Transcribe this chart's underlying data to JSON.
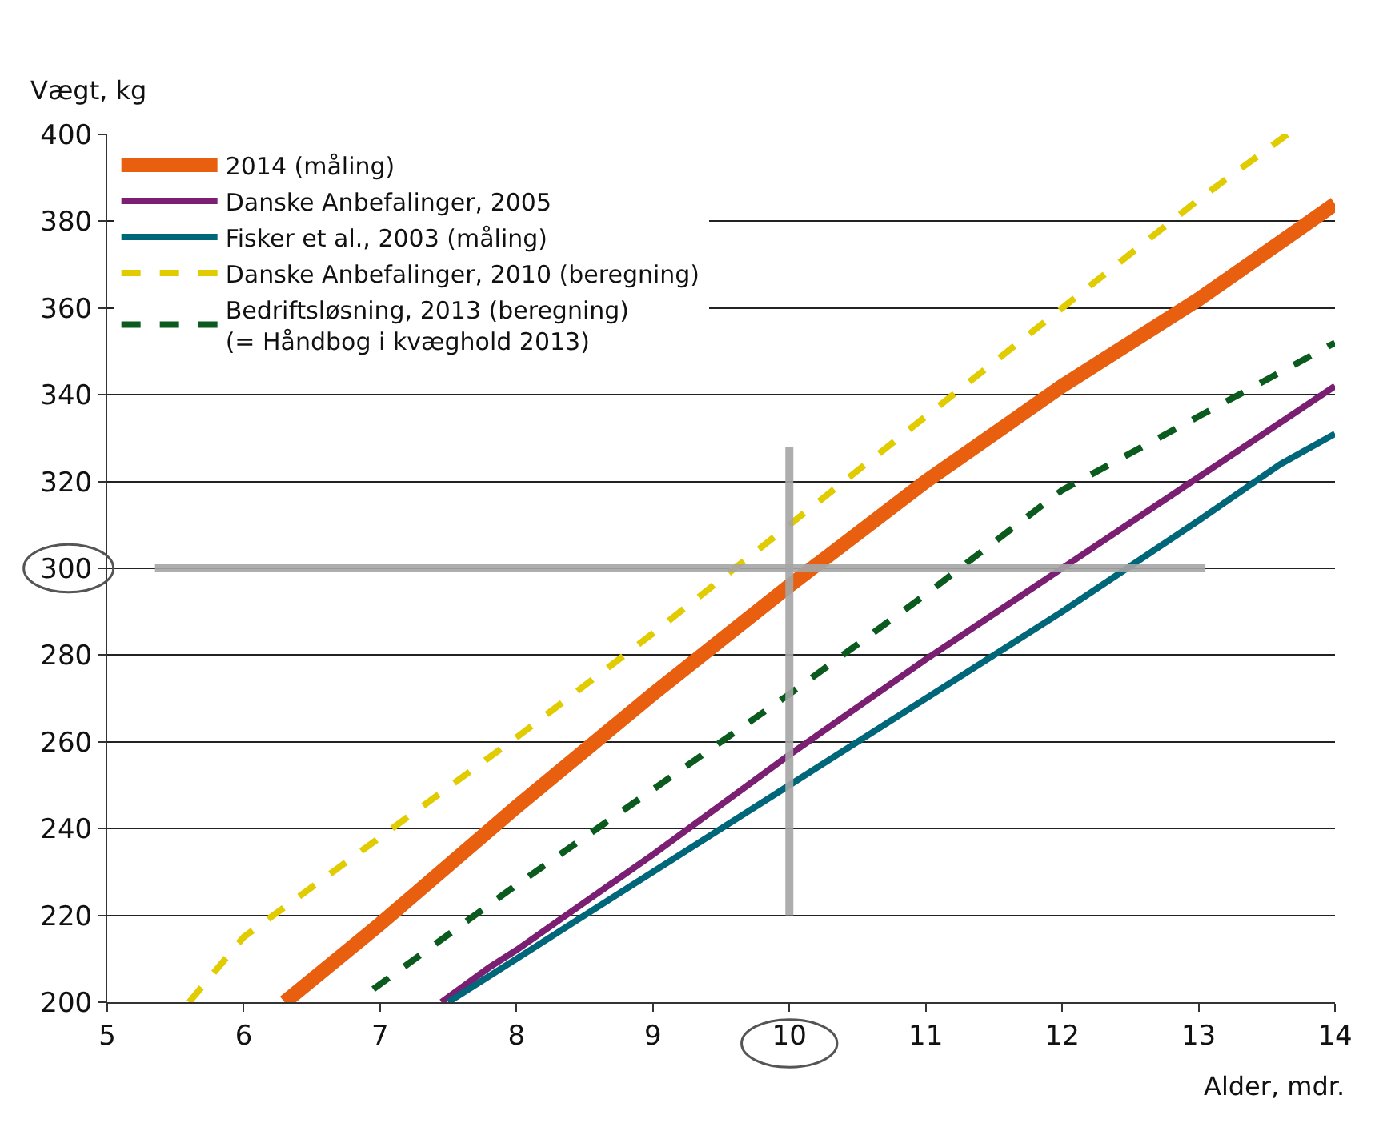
{
  "chart_data": {
    "type": "line",
    "xlabel": "Alder, mdr.",
    "ylabel": "Vægt, kg",
    "xlim": [
      5,
      14
    ],
    "xticks": [
      5,
      6,
      7,
      8,
      9,
      10,
      11,
      12,
      13,
      14
    ],
    "ylim": [
      200,
      400
    ],
    "yticks": [
      200,
      220,
      240,
      260,
      280,
      300,
      320,
      340,
      360,
      380,
      400
    ],
    "grid": "y",
    "legend": "top left",
    "marker": "none",
    "ref_lines": [
      {
        "axis": "y",
        "value": 300,
        "color": "#a6a6a6"
      },
      {
        "axis": "x",
        "value": 10,
        "color": "#a6a6a6"
      }
    ],
    "series": [
      {
        "name": "2014 (måling)",
        "color": "#e8600f",
        "line_style": "solid",
        "x": [
          6.3,
          7,
          8,
          9,
          10,
          11,
          12,
          13,
          14
        ],
        "values": [
          200,
          218,
          245,
          271,
          296,
          320,
          342,
          362,
          384
        ]
      },
      {
        "name": "Danske Anbefalinger, 2005",
        "color": "#7b1f73",
        "line_style": "solid",
        "x": [
          7.45,
          7.8,
          8,
          9,
          10,
          11,
          12,
          13,
          14
        ],
        "values": [
          200,
          208,
          212,
          234,
          257,
          279,
          300,
          321,
          342
        ]
      },
      {
        "name": "Fisker et al., 2003 (måling)",
        "color": "#00677a",
        "line_style": "solid",
        "x": [
          7.5,
          8,
          9,
          10,
          11,
          12,
          13,
          13.6,
          14
        ],
        "values": [
          200,
          210,
          230,
          250,
          270,
          290,
          311,
          324,
          331
        ]
      },
      {
        "name": "Danske Anbefalinger, 2010 (beregning)",
        "color": "#e0cc00",
        "line_style": "dashed",
        "x": [
          5.6,
          6,
          7,
          8,
          9,
          10,
          11,
          12,
          13,
          13.65
        ],
        "values": [
          200,
          215,
          238,
          261,
          285,
          310,
          335,
          360,
          385,
          400
        ]
      },
      {
        "name": "Bedriftsløsning, 2013 (beregning)\n(= Håndbog i kvæghold 2013)",
        "color": "#0b5a1e",
        "line_style": "dashed",
        "x": [
          6.95,
          8,
          9,
          10,
          11,
          12,
          13,
          14
        ],
        "values": [
          203,
          227,
          249,
          271,
          294,
          318,
          335,
          352
        ]
      }
    ]
  }
}
